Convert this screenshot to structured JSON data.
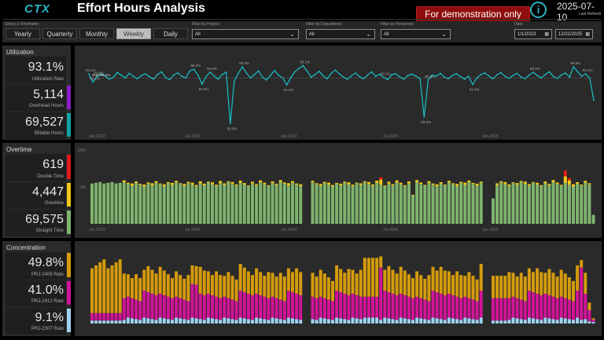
{
  "header": {
    "logo": "CTX",
    "title": "Effort Hours Analysis",
    "demo_label": "For demonstration only",
    "info_glyph": "i",
    "refresh_date": "2025-07-10",
    "refresh_label": "Last Refresh"
  },
  "filters": {
    "timeframe_label": "Select a Timeframe",
    "timeframes": [
      "Yearly",
      "Quarterly",
      "Monthly",
      "Weekly",
      "Daily"
    ],
    "active_timeframe": "Weekly",
    "project_label": "Filter by Project",
    "project_value": "All",
    "department_label": "Filter by Department",
    "department_value": "All",
    "personnel_label": "Filter by Personnel",
    "personnel_value": "All",
    "date_label": "Date",
    "date_start": "1/1/2023",
    "date_end": "12/31/2025"
  },
  "utilization": {
    "section_title": "Utilization",
    "rate_value": "93.1%",
    "rate_label": "Utilization Rate",
    "overhead_value": "5,114",
    "overhead_label": "Overhead Hours",
    "billable_value": "69,527",
    "billable_label": "Billable Hours",
    "overhead_color": "#8a1fc9",
    "billable_color": "#13a3a3"
  },
  "overtime": {
    "section_title": "Overtime",
    "double_value": "619",
    "double_label": "Double Time",
    "ot_value": "4,447",
    "ot_label": "Overtime",
    "straight_value": "69,575",
    "straight_label": "Straight Time",
    "double_color": "#e01a1a",
    "ot_color": "#f2c81a",
    "straight_color": "#7fb36e"
  },
  "concentration": {
    "section_title": "Concentration",
    "a_value": "49.8%",
    "a_label": "PRJ-2408 Rate",
    "b_value": "41.0%",
    "b_label": "PRJ-2412 Rate",
    "c_value": "9.1%",
    "c_label": "PRJ-2307 Rate",
    "a_color": "#d49b0c",
    "b_color": "#d21399",
    "c_color": "#9fd2f2"
  },
  "chart_data": [
    {
      "type": "line",
      "name": "utilization",
      "x_ticks": [
        "Jan 2023",
        "Jul 2023",
        "Jan 2024",
        "Jul 2024",
        "Jan 2025"
      ],
      "annotations": [
        "94.1%",
        "Goal 93.1%",
        "92.1%",
        "93.4%",
        "95.2%",
        "91.6%",
        "94.5%",
        "95.8%",
        "82.0%",
        "91.4%",
        "96.1%",
        "94.1%",
        "93.5%",
        "91.5%",
        "93.3%",
        "83.6%",
        "95.8%",
        "94.1%",
        "87.7%"
      ],
      "goal": 93.1,
      "series_color": "#19b7bd",
      "values": [
        94.1,
        92.1,
        93.4,
        94,
        93.6,
        92.8,
        93.2,
        94.4,
        93.8,
        93.1,
        94.2,
        93.5,
        92.9,
        93.7,
        94.1,
        93.4,
        92.8,
        93.9,
        94.6,
        93.2,
        92.7,
        93.8,
        94.3,
        93.5,
        93.1,
        94.8,
        95.2,
        93.8,
        91.6,
        93.4,
        94.5,
        93.6,
        92.8,
        93.9,
        94.5,
        82.0,
        92.4,
        94.2,
        95.8,
        94.3,
        93.1,
        93.9,
        94.8,
        93.3,
        92.6,
        93.8,
        94.9,
        93.7,
        93.1,
        91.4,
        93.2,
        94.6,
        95.4,
        96.1,
        94.8,
        93.3,
        93.9,
        94.7,
        93.6,
        92.9,
        94.2,
        95.0,
        94.1,
        93.3,
        92.8,
        93.6,
        94.3,
        93.4,
        92.9,
        93.8,
        94.6,
        93.5,
        94.0,
        93.2,
        92.7,
        93.9,
        94.1,
        93.3,
        92.8,
        93.7,
        94.0,
        93.5,
        92.9,
        83.6,
        92.6,
        93.8,
        93.5,
        94.2,
        93.3,
        92.9,
        93.7,
        94.1,
        93.4,
        92.8,
        93.5,
        91.5,
        93.0,
        93.9,
        94.3,
        93.6,
        92.9,
        93.8,
        94.4,
        93.5,
        93.0,
        93.7,
        94.2,
        93.3,
        92.9,
        93.8,
        94.5,
        93.7,
        93.1,
        93.9,
        94.6,
        93.4,
        93.0,
        93.8,
        94.3,
        93.3,
        95.8,
        94.6,
        93.5,
        94.1,
        93.0,
        87.7
      ]
    },
    {
      "type": "bar",
      "name": "overtime",
      "y_ticks": [
        "1000",
        "500"
      ],
      "x_ticks": [
        "Jan 2023",
        "Jul 2023",
        "Jan 2024",
        "Jul 2024",
        "Jan 2025"
      ],
      "series": [
        {
          "name": "Straight Time",
          "color": "#7fb36e"
        },
        {
          "name": "Overtime",
          "color": "#f2c81a"
        },
        {
          "name": "Double Time",
          "color": "#e01a1a"
        }
      ]
    },
    {
      "type": "bar",
      "name": "concentration",
      "x_ticks": [
        "Jan 2023",
        "Jul 2023",
        "Jan 2024",
        "Jul 2024",
        "Jan 2025"
      ],
      "series": [
        {
          "name": "PRJ-2307",
          "color": "#9fd2f2"
        },
        {
          "name": "PRJ-2412",
          "color": "#d21399"
        },
        {
          "name": "PRJ-2408",
          "color": "#d49b0c"
        }
      ]
    }
  ]
}
